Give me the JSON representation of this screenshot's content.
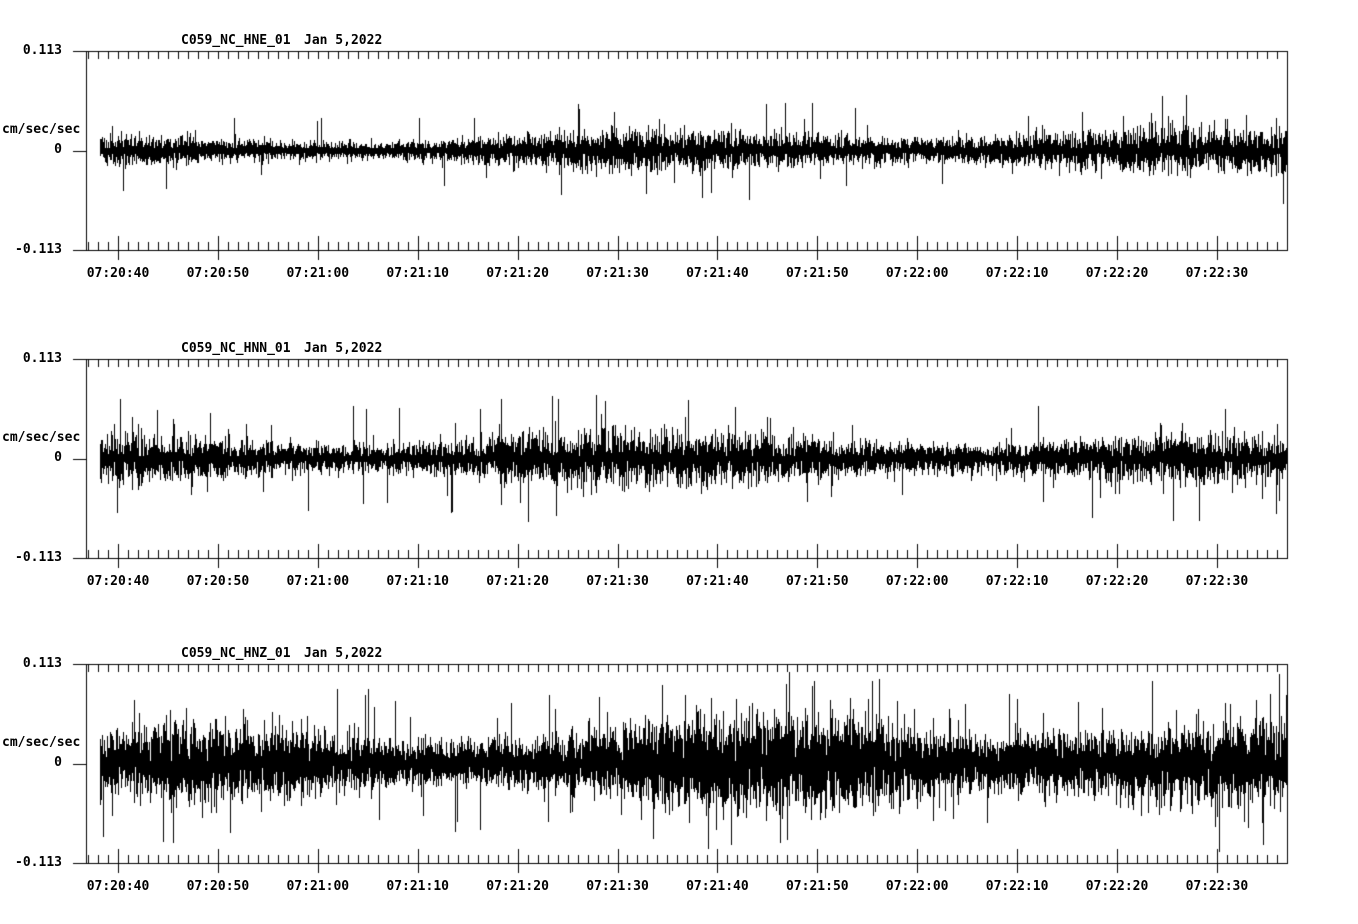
{
  "page": {
    "background_color": "#ffffff",
    "ink_color": "#000000",
    "description": "Three-channel seismogram noise record"
  },
  "chart_data": [
    {
      "type": "line",
      "title": "C059_NC_HNE_01",
      "date": "Jan 5,2022",
      "ylabel": "cm/sec/sec",
      "yticks": [
        "0.113",
        "0",
        "-0.113"
      ],
      "ylim": [
        -0.113,
        0.113
      ],
      "xticks": [
        "07:20:40",
        "07:20:50",
        "07:21:00",
        "07:21:10",
        "07:21:20",
        "07:21:30",
        "07:21:40",
        "07:21:50",
        "07:22:00",
        "07:22:10",
        "07:22:20",
        "07:22:30"
      ],
      "x_major_interval_seconds": 10,
      "minor_ticks_between_major": 9,
      "grid": false,
      "legend": false,
      "series": {
        "name": "HNE",
        "units": "cm/sec/sec",
        "character": "continuous broadband noise, zero-mean",
        "estimated_rms": 0.01,
        "estimated_peak": 0.059
      }
    },
    {
      "type": "line",
      "title": "C059_NC_HNN_01",
      "date": "Jan 5,2022",
      "ylabel": "cm/sec/sec",
      "yticks": [
        "0.113",
        "0",
        "-0.113"
      ],
      "ylim": [
        -0.113,
        0.113
      ],
      "xticks": [
        "07:20:40",
        "07:20:50",
        "07:21:00",
        "07:21:10",
        "07:21:20",
        "07:21:30",
        "07:21:40",
        "07:21:50",
        "07:22:00",
        "07:22:10",
        "07:22:20",
        "07:22:30"
      ],
      "x_major_interval_seconds": 10,
      "minor_ticks_between_major": 9,
      "grid": false,
      "legend": false,
      "series": {
        "name": "HNN",
        "units": "cm/sec/sec",
        "character": "continuous broadband noise, zero-mean",
        "estimated_rms": 0.0125,
        "estimated_peak": 0.071
      }
    },
    {
      "type": "line",
      "title": "C059_NC_HNZ_01",
      "date": "Jan 5,2022",
      "ylabel": "cm/sec/sec",
      "yticks": [
        "0.113",
        "0",
        "-0.113"
      ],
      "ylim": [
        -0.113,
        0.113
      ],
      "xticks": [
        "07:20:40",
        "07:20:50",
        "07:21:00",
        "07:21:10",
        "07:21:20",
        "07:21:30",
        "07:21:40",
        "07:21:50",
        "07:22:00",
        "07:22:10",
        "07:22:20",
        "07:22:30"
      ],
      "x_major_interval_seconds": 10,
      "minor_ticks_between_major": 9,
      "grid": false,
      "legend": false,
      "series": {
        "name": "HNZ",
        "units": "cm/sec/sec",
        "character": "continuous broadband noise, zero-mean, larger amplitude with frequent spikes",
        "estimated_rms": 0.0215,
        "estimated_peak": 0.1
      }
    }
  ]
}
